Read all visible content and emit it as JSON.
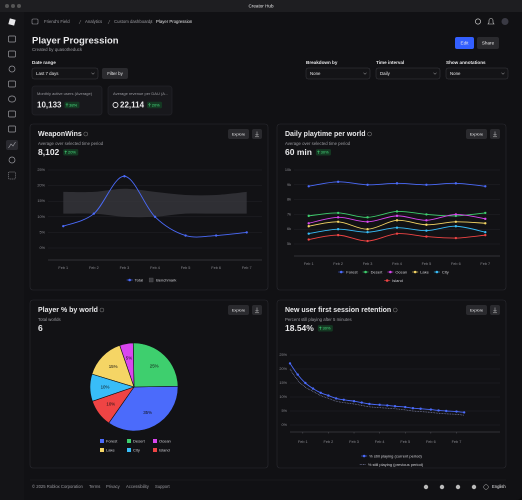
{
  "window": {
    "title": "Creator Hub"
  },
  "breadcrumb": [
    "Friend's Field",
    "Analytics",
    "Custom dashboards",
    "Player Progression"
  ],
  "header": {
    "title": "Player Progression",
    "subtitle": "Created by quasotheduck",
    "buttons": [
      "Edit",
      "Share"
    ]
  },
  "filters": [
    {
      "label": "Date range",
      "value": "Last 7 days"
    },
    {
      "label": "Breakdown by",
      "value": "None"
    },
    {
      "label": "Time interval",
      "value": "Daily"
    },
    {
      "label": "Show annotations",
      "value": "None"
    }
  ],
  "filter_button": "Filter by",
  "kpis": [
    {
      "label": "Monthly active users (Average)",
      "value": "10,133",
      "change": "38%"
    },
    {
      "label": "Average revenue per DAU (A...",
      "value": "22,114",
      "change": "20%"
    }
  ],
  "panels": [
    {
      "title": "WeaponWins",
      "subtitle": "Average over selected time period",
      "value": "8,102",
      "change": "20%",
      "action": "Explore",
      "chart": {
        "type": "line",
        "categories": [
          "Feb 1",
          "Feb 2",
          "Feb 3",
          "Feb 4",
          "Feb 5",
          "Feb 6",
          "Feb 7"
        ],
        "ylim": [
          0,
          25
        ],
        "yticks": [
          {
            "value": 0,
            "label": "0%"
          },
          {
            "value": 5,
            "label": "5%"
          },
          {
            "value": 10,
            "label": "10%"
          },
          {
            "value": 15,
            "label": "15%"
          },
          {
            "value": 20,
            "label": "20%"
          },
          {
            "value": 25,
            "label": "25%"
          }
        ],
        "grid": true,
        "series": [
          {
            "name": "Total",
            "color": "#4b6bfb",
            "values": [
              7,
              11,
              23,
              10,
              4,
              4,
              5
            ]
          },
          {
            "name": "Benchmark",
            "color": "#3a3a3f",
            "low": [
              11,
              11,
              10,
              10,
              11,
              11,
              11
            ],
            "high": [
              18,
              18,
              19,
              18,
              17,
              17,
              18
            ]
          }
        ]
      }
    },
    {
      "title": "Daily playtime per world",
      "subtitle": "Average over selected time period",
      "value": "60 min",
      "change": "30%",
      "action": "Explore",
      "chart": {
        "type": "line",
        "categories": [
          "Feb 1",
          "Feb 2",
          "Feb 3",
          "Feb 4",
          "Feb 5",
          "Feb 6",
          "Feb 7"
        ],
        "ylim": [
          5000,
          10000
        ],
        "yticks": [
          {
            "value": 5000,
            "label": "5k"
          },
          {
            "value": 6000,
            "label": "6k"
          },
          {
            "value": 7000,
            "label": "7k"
          },
          {
            "value": 8000,
            "label": "8k"
          },
          {
            "value": 9000,
            "label": "9k"
          },
          {
            "value": 10000,
            "label": "10k"
          }
        ],
        "grid": true,
        "series": [
          {
            "name": "Forest",
            "color": "#4b6bfb",
            "values": [
              8900,
              9200,
              9000,
              9100,
              9000,
              9100,
              8900
            ]
          },
          {
            "name": "Desert",
            "color": "#3ecf6e",
            "values": [
              6900,
              7100,
              6800,
              7200,
              7000,
              6900,
              7100
            ]
          },
          {
            "name": "Ocean",
            "color": "#d946ef",
            "values": [
              6400,
              6800,
              6500,
              6900,
              6600,
              7000,
              6700
            ]
          },
          {
            "name": "Lake",
            "color": "#f5d565",
            "values": [
              6200,
              6500,
              6000,
              6600,
              6300,
              6500,
              6400
            ]
          },
          {
            "name": "City",
            "color": "#38bdf8",
            "values": [
              5700,
              6000,
              5800,
              6100,
              5900,
              6200,
              5800
            ]
          },
          {
            "name": "Island",
            "color": "#ef4444",
            "values": [
              5300,
              5600,
              5200,
              5700,
              5500,
              5400,
              5600
            ]
          }
        ]
      }
    },
    {
      "title": "Player % by world",
      "subtitle": "Total worlds",
      "value": "6",
      "action": "Explore",
      "chart": {
        "type": "pie",
        "categories": [
          "Forest",
          "Desert",
          "Ocean",
          "Lake",
          "City",
          "Island"
        ],
        "values": [
          35,
          25,
          5,
          15,
          10,
          10
        ],
        "value_labels": [
          "35%",
          "25%",
          "5%",
          "15%",
          "10%",
          "10%"
        ],
        "colors": [
          "#4b6bfb",
          "#3ecf6e",
          "#d946ef",
          "#f5d565",
          "#38bdf8",
          "#ef4444"
        ]
      }
    },
    {
      "title": "New user first session retention",
      "subtitle": "Percent still playing after 5 minutes",
      "value": "18.54%",
      "change": "30%",
      "action": "Explore",
      "chart": {
        "type": "line",
        "x": [
          0.5,
          0.8,
          1.1,
          1.4,
          1.7,
          2,
          2.3,
          2.6,
          3,
          3.3,
          3.6,
          4,
          4.3,
          4.6,
          5,
          5.3,
          5.6,
          6,
          6.3,
          6.6,
          7,
          7.3
        ],
        "xlim": [
          0.5,
          8.7
        ],
        "xticks": [
          {
            "value": 1,
            "label": "Feb 1"
          },
          {
            "value": 2,
            "label": "Feb 2"
          },
          {
            "value": 3,
            "label": "Feb 3"
          },
          {
            "value": 4,
            "label": "Feb 4"
          },
          {
            "value": 5,
            "label": "Feb 5"
          },
          {
            "value": 6,
            "label": "Feb 6"
          },
          {
            "value": 7,
            "label": "Feb 7"
          }
        ],
        "ylim": [
          0,
          25
        ],
        "yticks": [
          {
            "value": 0,
            "label": "0%"
          },
          {
            "value": 5,
            "label": "5%"
          },
          {
            "value": 10,
            "label": "10%"
          },
          {
            "value": 15,
            "label": "15%"
          },
          {
            "value": 20,
            "label": "20%"
          },
          {
            "value": 25,
            "label": "25%"
          }
        ],
        "grid": true,
        "series": [
          {
            "name": "% still playing (current period)",
            "color": "#4b6bfb",
            "values": [
              22,
              18,
              15,
              13,
              11.5,
              10.5,
              9.5,
              9,
              8.5,
              8,
              7.5,
              7.2,
              7,
              6.7,
              6.4,
              6,
              5.8,
              5.5,
              5.2,
              5,
              4.8,
              4.5
            ]
          },
          {
            "name": "% still playing (previous period)",
            "color": "#8a8fb8",
            "style": "dotted",
            "values": [
              20,
              16,
              13.5,
              12,
              10.5,
              9.5,
              8.5,
              8,
              7.5,
              7,
              6.5,
              6.2,
              6,
              5.8,
              5.4,
              5,
              4.8,
              4.5,
              4.2,
              4,
              3.8,
              3.5
            ]
          }
        ]
      }
    }
  ],
  "footer": {
    "copyright": "© 2025 Roblox Corporation",
    "links": [
      "Terms",
      "Privacy",
      "Accessibility",
      "Support"
    ],
    "language": "English"
  }
}
